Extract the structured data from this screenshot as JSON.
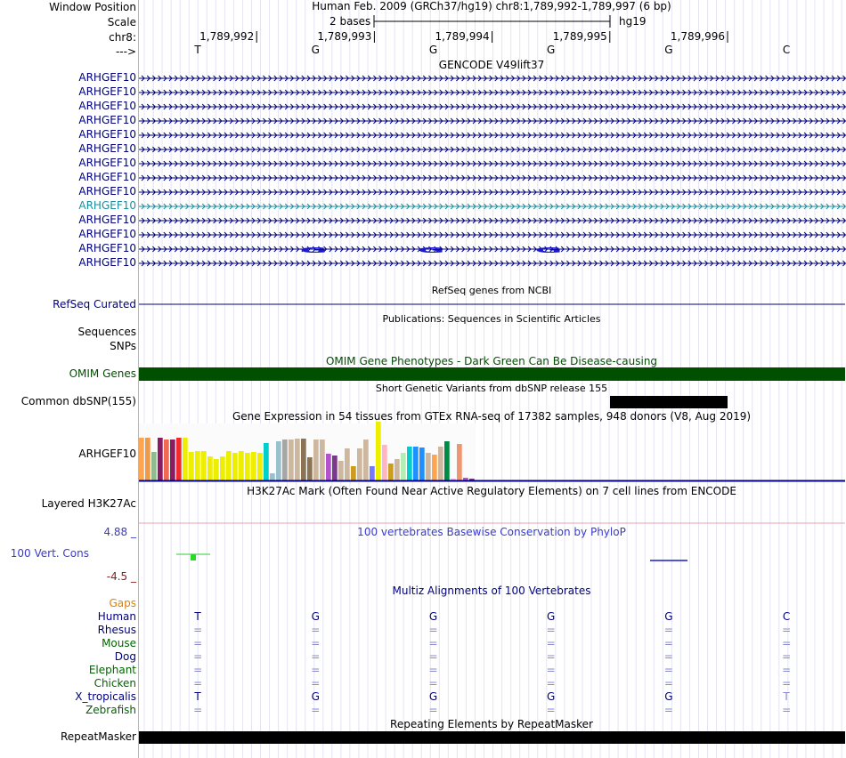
{
  "header": {
    "window_position_label": "Window Position",
    "scale_label": "Scale",
    "chrom_label": "chr8:",
    "strand_label": "--->",
    "assembly_title": "Human Feb. 2009 (GRCh37/hg19)   chr8:1,789,992-1,789,997 (6 bp)",
    "scale_text": "2 bases",
    "db_label": "hg19",
    "positions": [
      "1,789,992",
      "1,789,993",
      "1,789,994",
      "1,789,995",
      "1,789,996"
    ],
    "bases": [
      "T",
      "G",
      "G",
      "G",
      "G",
      "C"
    ]
  },
  "gencode": {
    "title": "GENCODE V49lift37",
    "rows": [
      {
        "label": "ARHGEF10",
        "color": "#000080"
      },
      {
        "label": "ARHGEF10",
        "color": "#000080"
      },
      {
        "label": "ARHGEF10",
        "color": "#000080"
      },
      {
        "label": "ARHGEF10",
        "color": "#000080"
      },
      {
        "label": "ARHGEF10",
        "color": "#000080"
      },
      {
        "label": "ARHGEF10",
        "color": "#000080"
      },
      {
        "label": "ARHGEF10",
        "color": "#000080"
      },
      {
        "label": "ARHGEF10",
        "color": "#000080"
      },
      {
        "label": "ARHGEF10",
        "color": "#000080"
      },
      {
        "label": "ARHGEF10",
        "color": "#1a8fa0"
      },
      {
        "label": "ARHGEF10",
        "color": "#000080"
      },
      {
        "label": "ARHGEF10",
        "color": "#000080"
      },
      {
        "label": "ARHGEF10",
        "color": "#000080"
      },
      {
        "label": "ARHGEF10",
        "color": "#000080"
      }
    ]
  },
  "refseq": {
    "title": "RefSeq genes from NCBI",
    "label": "RefSeq Curated",
    "color": "#000080"
  },
  "publications": {
    "title": "Publications: Sequences in Scientific Articles",
    "label1": "Sequences",
    "label2": "SNPs"
  },
  "omim": {
    "title": "OMIM Gene Phenotypes - Dark Green Can Be Disease-causing",
    "label": "OMIM Genes",
    "color": "#005000"
  },
  "dbsnp": {
    "title": "Short Genetic Variants from dbSNP release 155",
    "label": "Common dbSNP(155)"
  },
  "gtex": {
    "title": "Gene Expression in 54 tissues from GTEx RNA-seq of 17382 samples, 948 donors (V8, Aug 2019)",
    "label": "ARHGEF10",
    "bars": [
      {
        "v": 0.48,
        "c": "#FFA54F"
      },
      {
        "v": 0.48,
        "c": "#EE9A49"
      },
      {
        "v": 0.32,
        "c": "#8FBC8F"
      },
      {
        "v": 0.48,
        "c": "#8B1C62"
      },
      {
        "v": 0.46,
        "c": "#EE6A50"
      },
      {
        "v": 0.46,
        "c": "#8B1C62"
      },
      {
        "v": 0.48,
        "c": "#EE2C2C"
      },
      {
        "v": 0.48,
        "c": "#EEEE00"
      },
      {
        "v": 0.32,
        "c": "#EEEE00"
      },
      {
        "v": 0.33,
        "c": "#EEEE00"
      },
      {
        "v": 0.33,
        "c": "#EEEE00"
      },
      {
        "v": 0.27,
        "c": "#EEEE00"
      },
      {
        "v": 0.24,
        "c": "#EEEE00"
      },
      {
        "v": 0.27,
        "c": "#EEEE00"
      },
      {
        "v": 0.33,
        "c": "#EEEE00"
      },
      {
        "v": 0.31,
        "c": "#EEEE00"
      },
      {
        "v": 0.33,
        "c": "#EEEE00"
      },
      {
        "v": 0.31,
        "c": "#EEEE00"
      },
      {
        "v": 0.32,
        "c": "#EEEE00"
      },
      {
        "v": 0.31,
        "c": "#EEEE00"
      },
      {
        "v": 0.42,
        "c": "#00CDCD"
      },
      {
        "v": 0.08,
        "c": "#9AC0CD"
      },
      {
        "v": 0.44,
        "c": "#9AC0CD"
      },
      {
        "v": 0.46,
        "c": "#A6A6A6"
      },
      {
        "v": 0.46,
        "c": "#CDB79E"
      },
      {
        "v": 0.47,
        "c": "#CDB79E"
      },
      {
        "v": 0.47,
        "c": "#8B7355"
      },
      {
        "v": 0.26,
        "c": "#8B7355"
      },
      {
        "v": 0.46,
        "c": "#CDB79E"
      },
      {
        "v": 0.46,
        "c": "#CDB79E"
      },
      {
        "v": 0.3,
        "c": "#B452CD"
      },
      {
        "v": 0.28,
        "c": "#7A378B"
      },
      {
        "v": 0.22,
        "c": "#CDB79E"
      },
      {
        "v": 0.36,
        "c": "#CDB79E"
      },
      {
        "v": 0.16,
        "c": "#CD9B1D"
      },
      {
        "v": 0.36,
        "c": "#CDB79E"
      },
      {
        "v": 0.46,
        "c": "#CDB79E"
      },
      {
        "v": 0.16,
        "c": "#7777FF"
      },
      {
        "v": 0.66,
        "c": "#EEEE00"
      },
      {
        "v": 0.4,
        "c": "#FFB6C1"
      },
      {
        "v": 0.19,
        "c": "#CD9B1D"
      },
      {
        "v": 0.24,
        "c": "#CDB79E"
      },
      {
        "v": 0.31,
        "c": "#B4EEB4"
      },
      {
        "v": 0.38,
        "c": "#00CDCD"
      },
      {
        "v": 0.38,
        "c": "#1E90FF"
      },
      {
        "v": 0.37,
        "c": "#1E90FF"
      },
      {
        "v": 0.31,
        "c": "#CDB79E"
      },
      {
        "v": 0.29,
        "c": "#FFA54F"
      },
      {
        "v": 0.38,
        "c": "#CDB79E"
      },
      {
        "v": 0.44,
        "c": "#008B45"
      },
      {
        "v": 0.02,
        "c": "#EEAEEE"
      },
      {
        "v": 0.41,
        "c": "#EE9572"
      },
      {
        "v": 0.03,
        "c": "#B452CD"
      },
      {
        "v": 0.02,
        "c": "#7A378B"
      }
    ]
  },
  "h3k27ac": {
    "title": "H3K27Ac Mark (Often Found Near Active Regulatory Elements) on 7 cell lines from ENCODE",
    "label": "Layered H3K27Ac"
  },
  "phylop": {
    "title": "100 vertebrates Basewise Conservation by PhyloP",
    "label": "100 Vert. Cons",
    "ymax": "4.88 _",
    "ymin": "-4.5 _",
    "ymax_value": 4.88,
    "ymin_value": -4.5
  },
  "multiz": {
    "title": "Multiz Alignments of 100 Vertebrates",
    "gaps_label": "Gaps",
    "species": [
      {
        "name": "Human",
        "color": "#000080",
        "seq": [
          "T",
          "G",
          "G",
          "G",
          "G",
          "C"
        ]
      },
      {
        "name": "Rhesus",
        "color": "#000080",
        "seq": [
          "=",
          "=",
          "=",
          "=",
          "=",
          "="
        ]
      },
      {
        "name": "Mouse",
        "color": "#006400",
        "seq": [
          "=",
          "=",
          "=",
          "=",
          "=",
          "="
        ]
      },
      {
        "name": "Dog",
        "color": "#000080",
        "seq": [
          "=",
          "=",
          "=",
          "=",
          "=",
          "="
        ]
      },
      {
        "name": "Elephant",
        "color": "#006400",
        "seq": [
          "=",
          "=",
          "=",
          "=",
          "=",
          "="
        ]
      },
      {
        "name": "Chicken",
        "color": "#006400",
        "seq": [
          "=",
          "=",
          "=",
          "=",
          "=",
          "="
        ]
      },
      {
        "name": "X_tropicalis",
        "color": "#000080",
        "seq": [
          "T",
          "G",
          "G",
          "G",
          "G",
          "T"
        ]
      },
      {
        "name": "Zebrafish",
        "color": "#006400",
        "seq": [
          "=",
          "=",
          "=",
          "=",
          "=",
          "="
        ]
      }
    ]
  },
  "repeatmasker": {
    "title": "Repeating Elements by RepeatMasker",
    "label": "RepeatMasker"
  }
}
